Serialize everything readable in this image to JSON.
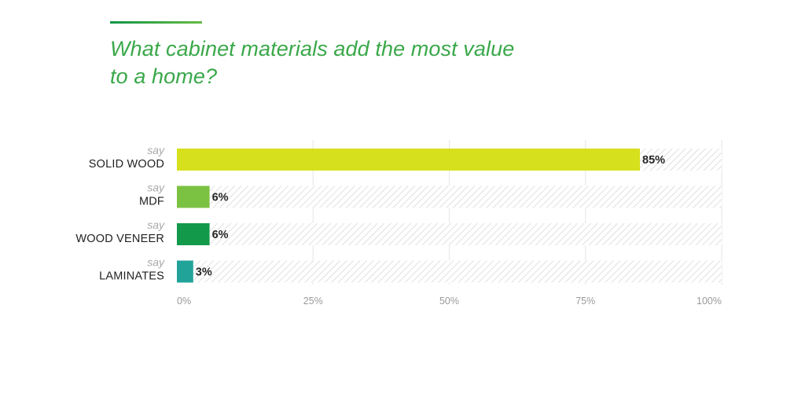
{
  "chart_data": {
    "type": "bar",
    "orientation": "horizontal",
    "title": "What cabinet materials add the most value to a home?",
    "title_lines": [
      "What cabinet materials add the most value",
      "to a home?"
    ],
    "category_prefix": "say",
    "categories": [
      "SOLID WOOD",
      "MDF",
      "WOOD VENEER",
      "LAMINATES"
    ],
    "values": [
      85,
      6,
      6,
      3
    ],
    "value_labels": [
      "85%",
      "6%",
      "6%",
      "3%"
    ],
    "bar_colors": [
      "#d6e01d",
      "#7cc242",
      "#12994a",
      "#22a39a"
    ],
    "xlim": [
      0,
      100
    ],
    "xticks": [
      0,
      25,
      50,
      75,
      100
    ],
    "xtick_labels": [
      "0%",
      "25%",
      "50%",
      "75%",
      "100%"
    ],
    "background_pattern": "hatched",
    "grid": true
  },
  "colors": {
    "title": "#3aa84a",
    "accent_line_start": "#119447",
    "accent_line_end": "#66bb44",
    "hatch": "#d6d6d6",
    "grid": "#e6e6e6"
  }
}
